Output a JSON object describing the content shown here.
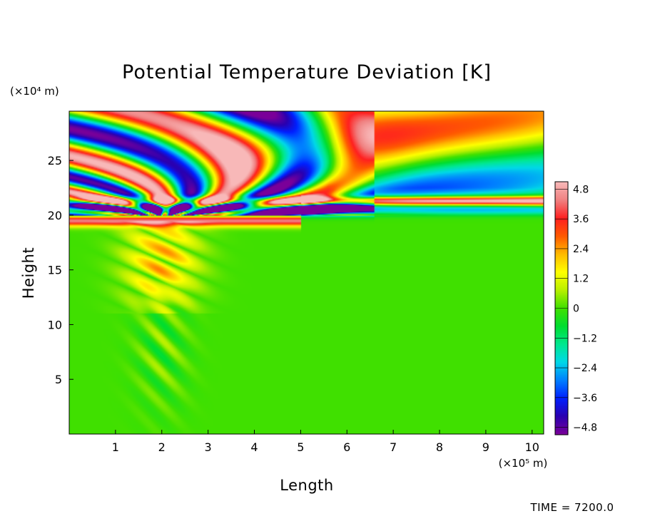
{
  "chart_data": {
    "type": "heatmap",
    "title": "Potential Temperature Deviation [K]",
    "xlabel": "Length",
    "ylabel": "Height",
    "x_unit": "(×10⁵ m)",
    "y_unit": "(×10⁴ m)",
    "x_ticks": [
      "1",
      "2",
      "3",
      "4",
      "5",
      "6",
      "7",
      "8",
      "9",
      "10"
    ],
    "y_ticks": [
      "5",
      "10",
      "15",
      "20",
      "25"
    ],
    "xlim": [
      0,
      10.25
    ],
    "ylim": [
      0,
      29.5
    ],
    "colorbar": {
      "ticks": [
        "4.8",
        "3.6",
        "2.4",
        "1.2",
        "0",
        "−1.2",
        "−2.4",
        "−3.6",
        "−4.8"
      ],
      "range": [
        -5.1,
        5.1
      ],
      "colors": [
        "#7a0099",
        "#2a00b0",
        "#0020ff",
        "#0080ff",
        "#00d8e8",
        "#00e890",
        "#00dd30",
        "#40e000",
        "#b8f000",
        "#ffff00",
        "#ffbb00",
        "#ff5a00",
        "#ff2020",
        "#f08080",
        "#f8b8b8"
      ]
    },
    "structures": {
      "tropopause_height": 20.0,
      "upper_positive_band": 21.3,
      "lower_negative_band": 20.5,
      "warm_layer_top": 19.5,
      "source_center_x": 2.0,
      "source_halfwidth_x": 1.0
    },
    "grid": false,
    "legend": "none"
  },
  "footer": {
    "time_label": "TIME = 7200.0"
  }
}
